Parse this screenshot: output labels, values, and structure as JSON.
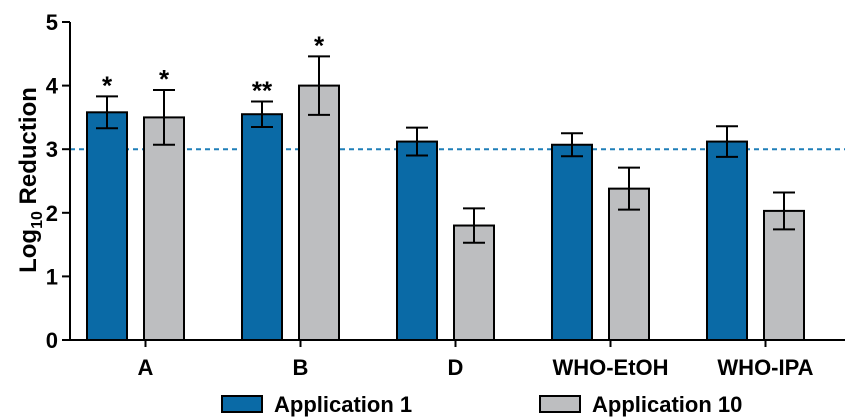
{
  "chart_data": {
    "type": "bar",
    "title": "",
    "ylabel_main": "Log",
    "ylabel_sub": "10",
    "ylabel_rest": " Reduction",
    "xlabel": "",
    "ylim": [
      0,
      5
    ],
    "yticks": [
      "0",
      "1",
      "2",
      "3",
      "4",
      "5"
    ],
    "categories": [
      "A",
      "B",
      "D",
      "WHO-EtOH",
      "WHO-IPA"
    ],
    "series": [
      {
        "name": "Application 1",
        "color": "#0a6aa6",
        "values": [
          3.58,
          3.55,
          3.12,
          3.07,
          3.12
        ],
        "errors": [
          0.25,
          0.2,
          0.22,
          0.18,
          0.24
        ],
        "significance": [
          "*",
          "**",
          "",
          "",
          ""
        ]
      },
      {
        "name": "Application 10",
        "color": "#bdbec0",
        "values": [
          3.5,
          4.0,
          1.8,
          2.38,
          2.03
        ],
        "errors": [
          0.43,
          0.46,
          0.27,
          0.33,
          0.29
        ],
        "significance": [
          "*",
          "*",
          "",
          "",
          ""
        ]
      }
    ],
    "reference_line": {
      "value": 3,
      "style": "dashed",
      "color": "#1f7fb8"
    },
    "grid": false,
    "legend_position": "bottom"
  }
}
